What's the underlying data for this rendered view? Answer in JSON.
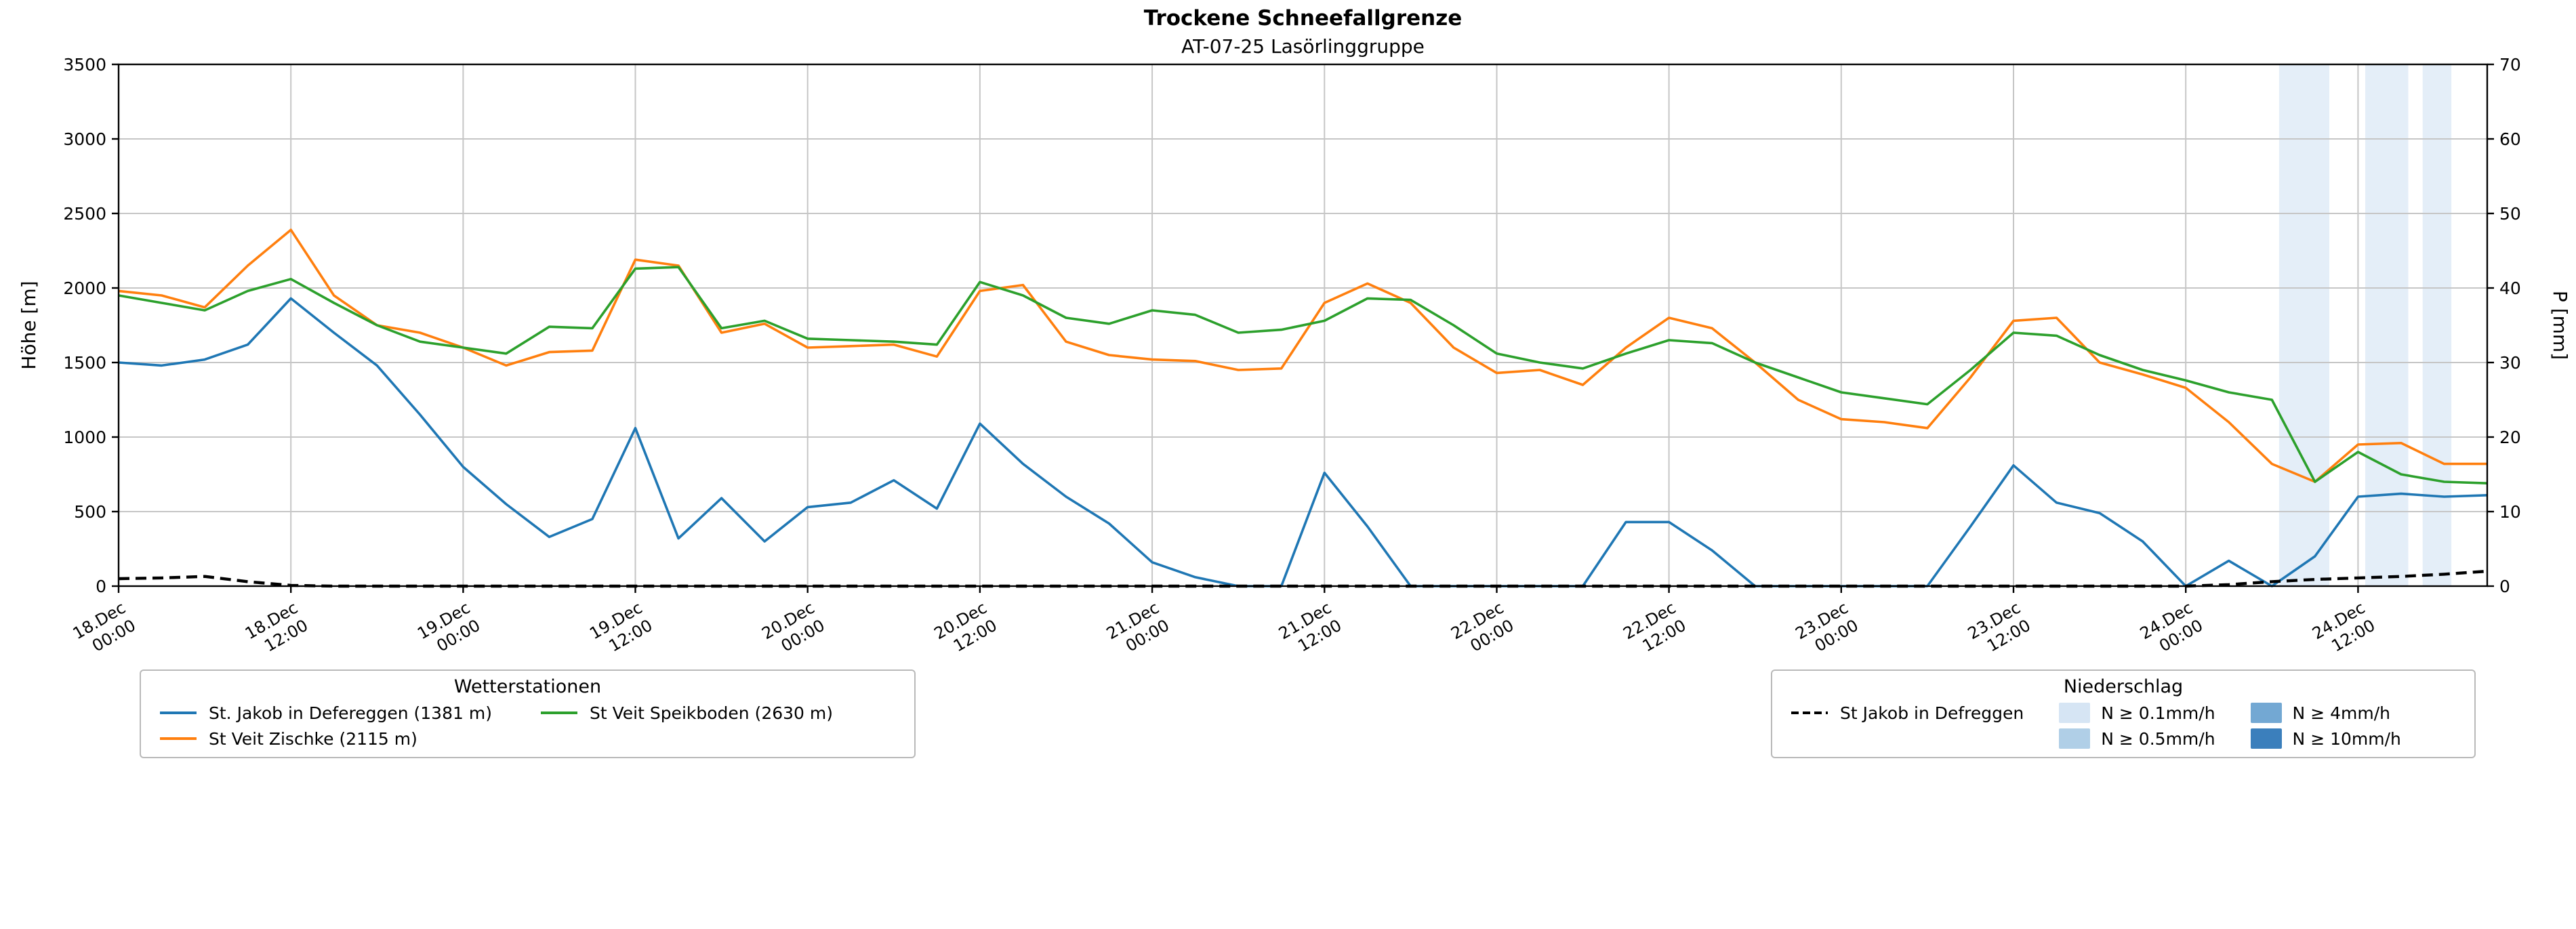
{
  "title": "Trockene Schneefallgrenze",
  "subtitle": "AT-07-25 Lasörlinggruppe",
  "chart_data": {
    "type": "line",
    "title": "Trockene Schneefallgrenze",
    "subtitle": "AT-07-25 Lasörlinggruppe",
    "ylabel_left": "Höhe [m]",
    "ylabel_right": "P [mm]",
    "ylim_left": [
      0,
      3500
    ],
    "yticks_left": [
      0,
      500,
      1000,
      1500,
      2000,
      2500,
      3000,
      3500
    ],
    "ylim_right": [
      0,
      70
    ],
    "yticks_right": [
      0,
      10,
      20,
      30,
      40,
      50,
      60,
      70
    ],
    "xlim_hours": [
      0,
      165
    ],
    "grid": true,
    "grid_color": "#c6c6c6",
    "xticks": [
      {
        "hour": 0,
        "date": "18.Dec",
        "time": "00:00"
      },
      {
        "hour": 12,
        "date": "18.Dec",
        "time": "12:00"
      },
      {
        "hour": 24,
        "date": "19.Dec",
        "time": "00:00"
      },
      {
        "hour": 36,
        "date": "19.Dec",
        "time": "12:00"
      },
      {
        "hour": 48,
        "date": "20.Dec",
        "time": "00:00"
      },
      {
        "hour": 60,
        "date": "20.Dec",
        "time": "12:00"
      },
      {
        "hour": 72,
        "date": "21.Dec",
        "time": "00:00"
      },
      {
        "hour": 84,
        "date": "21.Dec",
        "time": "12:00"
      },
      {
        "hour": 96,
        "date": "22.Dec",
        "time": "00:00"
      },
      {
        "hour": 108,
        "date": "22.Dec",
        "time": "12:00"
      },
      {
        "hour": 120,
        "date": "23.Dec",
        "time": "00:00"
      },
      {
        "hour": 132,
        "date": "23.Dec",
        "time": "12:00"
      },
      {
        "hour": 144,
        "date": "24.Dec",
        "time": "00:00"
      },
      {
        "hour": 156,
        "date": "24.Dec",
        "time": "12:00"
      }
    ],
    "x_hours": [
      0,
      3,
      6,
      9,
      12,
      15,
      18,
      21,
      24,
      27,
      30,
      33,
      36,
      39,
      42,
      45,
      48,
      51,
      54,
      57,
      60,
      63,
      66,
      69,
      72,
      75,
      78,
      81,
      84,
      87,
      90,
      93,
      96,
      99,
      102,
      105,
      108,
      111,
      114,
      117,
      120,
      123,
      126,
      129,
      132,
      135,
      138,
      141,
      144,
      147,
      150,
      153,
      156,
      159,
      162,
      165
    ],
    "series": [
      {
        "name": "St. Jakob in Defereggen (1381 m)",
        "color": "#1f77b4",
        "axis": "left",
        "style": "solid",
        "values": [
          1500,
          1480,
          1520,
          1620,
          1930,
          1700,
          1480,
          1150,
          800,
          550,
          330,
          450,
          1060,
          320,
          590,
          300,
          530,
          560,
          710,
          520,
          1090,
          820,
          600,
          420,
          160,
          60,
          0,
          0,
          760,
          400,
          0,
          0,
          0,
          0,
          0,
          430,
          430,
          240,
          0,
          0,
          0,
          0,
          0,
          400,
          810,
          560,
          490,
          300,
          0,
          170,
          0,
          200,
          600,
          620,
          600,
          610
        ]
      },
      {
        "name": "St Veit Zischke (2115 m)",
        "color": "#ff7f0e",
        "axis": "left",
        "style": "solid",
        "values": [
          1980,
          1950,
          1870,
          2150,
          2390,
          1950,
          1750,
          1700,
          1600,
          1480,
          1570,
          1580,
          2190,
          2150,
          1700,
          1760,
          1600,
          1610,
          1620,
          1540,
          1980,
          2020,
          1640,
          1550,
          1520,
          1510,
          1450,
          1460,
          1900,
          2030,
          1900,
          1600,
          1430,
          1450,
          1350,
          1600,
          1800,
          1730,
          1500,
          1250,
          1120,
          1100,
          1060,
          1400,
          1780,
          1800,
          1500,
          1420,
          1330,
          1100,
          820,
          700,
          950,
          960,
          820,
          820
        ]
      },
      {
        "name": "St Veit Speikboden (2630 m)",
        "color": "#2ca02c",
        "axis": "left",
        "style": "solid",
        "values": [
          1950,
          1900,
          1850,
          1980,
          2060,
          1900,
          1750,
          1640,
          1600,
          1560,
          1740,
          1730,
          2130,
          2140,
          1730,
          1780,
          1660,
          1650,
          1640,
          1620,
          2040,
          1950,
          1800,
          1760,
          1850,
          1820,
          1700,
          1720,
          1780,
          1930,
          1920,
          1750,
          1560,
          1500,
          1460,
          1560,
          1650,
          1630,
          1500,
          1400,
          1300,
          1260,
          1220,
          1450,
          1700,
          1680,
          1550,
          1450,
          1380,
          1300,
          1250,
          700,
          900,
          750,
          700,
          690
        ]
      },
      {
        "name": "St Jakob in Defreggen",
        "color": "#000000",
        "axis": "right",
        "style": "dashed",
        "values": [
          1.0,
          1.1,
          1.3,
          0.6,
          0.1,
          0,
          0,
          0,
          0,
          0,
          0,
          0,
          0,
          0,
          0,
          0,
          0,
          0,
          0,
          0,
          0,
          0,
          0,
          0,
          0,
          0,
          0,
          0,
          0,
          0,
          0,
          0,
          0,
          0,
          0,
          0,
          0,
          0,
          0,
          0,
          0,
          0,
          0,
          0,
          0,
          0,
          0,
          0,
          0,
          0.2,
          0.6,
          0.9,
          1.1,
          1.3,
          1.6,
          2.0
        ]
      }
    ],
    "precip_bands": [
      {
        "start_hour": 150.5,
        "end_hour": 154.0,
        "level": "N ≥ 0.1mm/h",
        "color": "#d6e5f4"
      },
      {
        "start_hour": 156.5,
        "end_hour": 159.5,
        "level": "N ≥ 0.1mm/h",
        "color": "#d6e5f4"
      },
      {
        "start_hour": 160.5,
        "end_hour": 162.5,
        "level": "N ≥ 0.1mm/h",
        "color": "#d6e5f4"
      }
    ]
  },
  "legend_left": {
    "title": "Wetterstationen",
    "items": [
      {
        "label": "St. Jakob in Defereggen (1381 m)",
        "color": "#1f77b4",
        "style": "solid",
        "column": 0
      },
      {
        "label": "St Veit Zischke (2115 m)",
        "color": "#ff7f0e",
        "style": "solid",
        "column": 0
      },
      {
        "label": "St Veit Speikboden (2630 m)",
        "color": "#2ca02c",
        "style": "solid",
        "column": 1
      }
    ]
  },
  "legend_right": {
    "title": "Niederschlag",
    "line_items": [
      {
        "label": "St Jakob in Defreggen",
        "color": "#000000",
        "style": "dashed"
      }
    ],
    "band_items": [
      {
        "label": "N ≥ 0.1mm/h",
        "color": "#d6e5f4"
      },
      {
        "label": "N ≥ 0.5mm/h",
        "color": "#b0cfe7"
      },
      {
        "label": "N ≥ 4mm/h",
        "color": "#73a8d3"
      },
      {
        "label": "N ≥ 10mm/h",
        "color": "#3b7fbc"
      }
    ]
  }
}
